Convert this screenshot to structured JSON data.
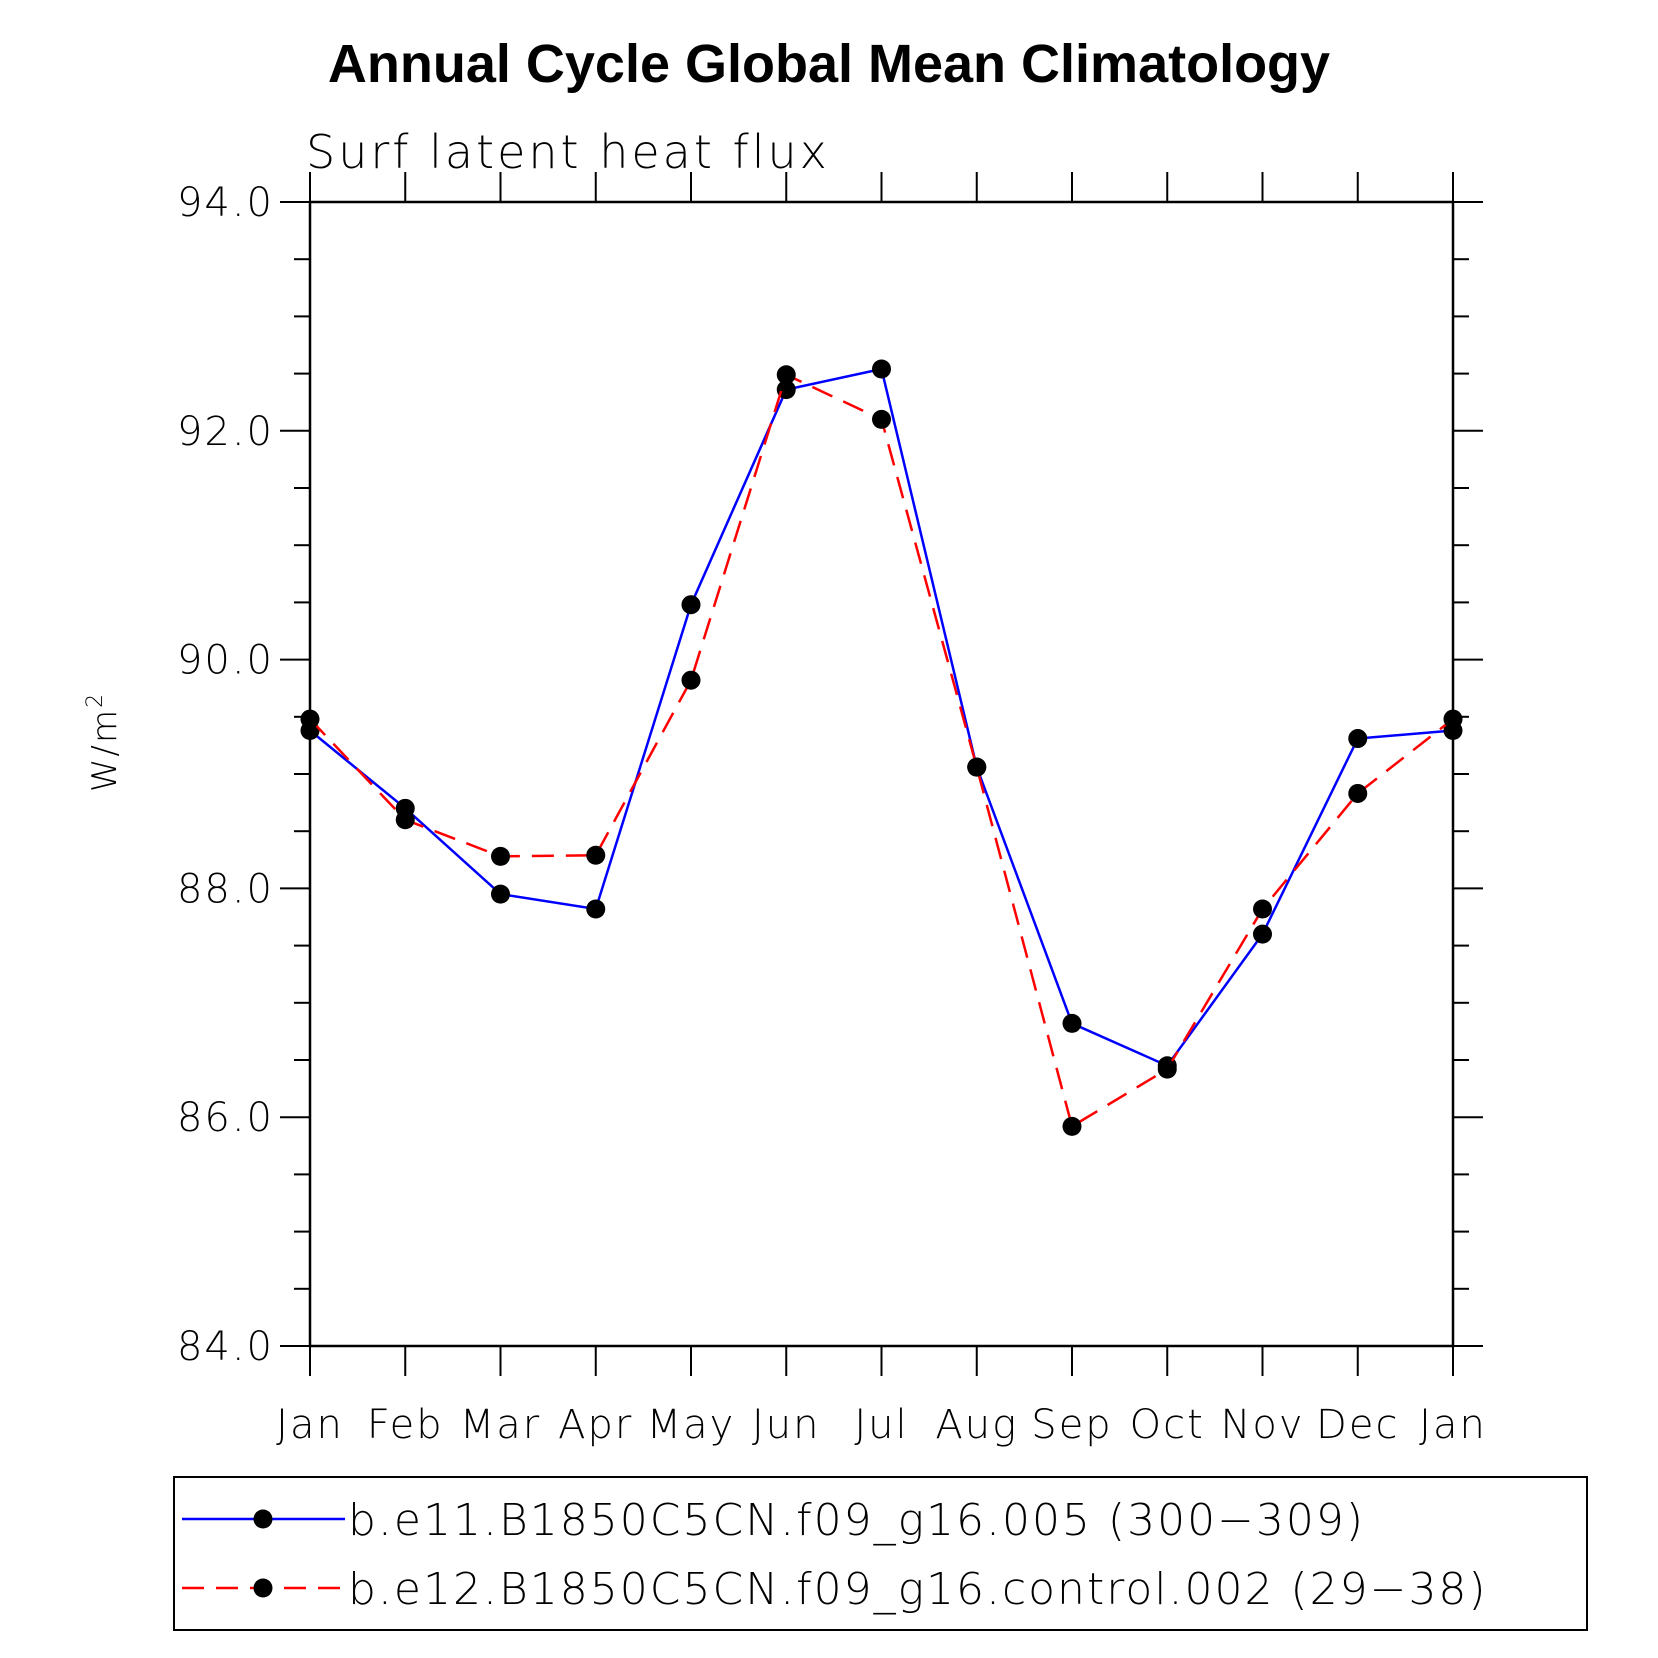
{
  "chart_data": {
    "type": "line",
    "title": "Annual Cycle Global Mean Climatology",
    "subtitle": "Surf latent heat flux",
    "ylabel": "W/m",
    "ylabel_superscript": "2",
    "ylim": [
      84.0,
      94.0
    ],
    "ymajor_ticks": [
      84.0,
      86.0,
      88.0,
      90.0,
      92.0,
      94.0
    ],
    "ytick_labels": [
      "84.0",
      "86.0",
      "88.0",
      "90.0",
      "92.0",
      "94.0"
    ],
    "yminor_step": 0.5,
    "categories": [
      "Jan",
      "Feb",
      "Mar",
      "Apr",
      "May",
      "Jun",
      "Jul",
      "Aug",
      "Sep",
      "Oct",
      "Nov",
      "Dec",
      "Jan"
    ],
    "series": [
      {
        "name": "b.e11.B1850C5CN.f09_g16.005 (300−309)",
        "color": "#0000ff",
        "dash": "solid",
        "values": [
          89.38,
          88.7,
          87.95,
          87.82,
          90.48,
          92.36,
          92.54,
          89.06,
          86.82,
          86.45,
          87.6,
          89.31,
          89.38
        ]
      },
      {
        "name": "b.e12.B1850C5CN.f09_g16.control.002 (29−38)",
        "color": "#ff0000",
        "dash": "dashed",
        "values": [
          89.48,
          88.6,
          88.28,
          88.29,
          89.82,
          92.49,
          92.1,
          89.06,
          85.92,
          86.42,
          87.82,
          88.83,
          89.48
        ]
      }
    ],
    "legend_position": "bottom"
  }
}
